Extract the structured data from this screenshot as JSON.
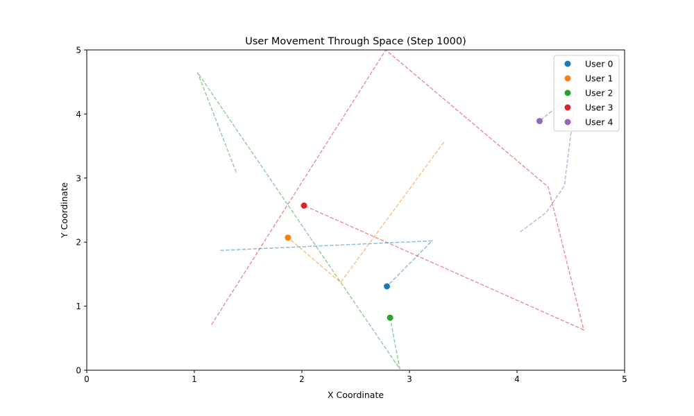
{
  "chart_data": {
    "type": "scatter",
    "title": "User Movement Through Space (Step 1000)",
    "xlabel": "X Coordinate",
    "ylabel": "Y Coordinate",
    "xlim": [
      0,
      5
    ],
    "ylim": [
      0,
      5
    ],
    "xticks": [
      0,
      1,
      2,
      3,
      4,
      5
    ],
    "yticks": [
      0,
      1,
      2,
      3,
      4,
      5
    ],
    "grid": false,
    "legend_position": "top-right",
    "series": [
      {
        "name": "User 0",
        "color": "#1f77b4",
        "trail": [
          [
            1.24,
            1.87
          ],
          [
            3.21,
            2.02
          ],
          [
            2.79,
            1.31
          ]
        ],
        "current": [
          2.79,
          1.31
        ]
      },
      {
        "name": "User 1",
        "color": "#ff7f0e",
        "trail": [
          [
            3.32,
            3.56
          ],
          [
            2.36,
            1.37
          ],
          [
            1.87,
            2.07
          ]
        ],
        "current": [
          1.87,
          2.07
        ]
      },
      {
        "name": "User 2",
        "color": "#2ca02c",
        "trail": [
          [
            1.39,
            3.09
          ],
          [
            1.03,
            4.65
          ],
          [
            2.91,
            0.02
          ],
          [
            2.82,
            0.82
          ]
        ],
        "current": [
          2.82,
          0.82
        ]
      },
      {
        "name": "User 3",
        "color": "#d62728",
        "trail": [
          [
            1.16,
            0.71
          ],
          [
            2.78,
            5.0
          ],
          [
            4.29,
            2.86
          ],
          [
            4.62,
            0.63
          ],
          [
            2.02,
            2.57
          ]
        ],
        "current": [
          2.02,
          2.57
        ]
      },
      {
        "name": "User 4",
        "color": "#9467bd",
        "trail": [
          [
            4.03,
            2.16
          ],
          [
            4.27,
            2.46
          ],
          [
            4.44,
            2.88
          ],
          [
            4.55,
            4.36
          ],
          [
            4.21,
            3.89
          ]
        ],
        "current": [
          4.21,
          3.89
        ]
      }
    ]
  }
}
